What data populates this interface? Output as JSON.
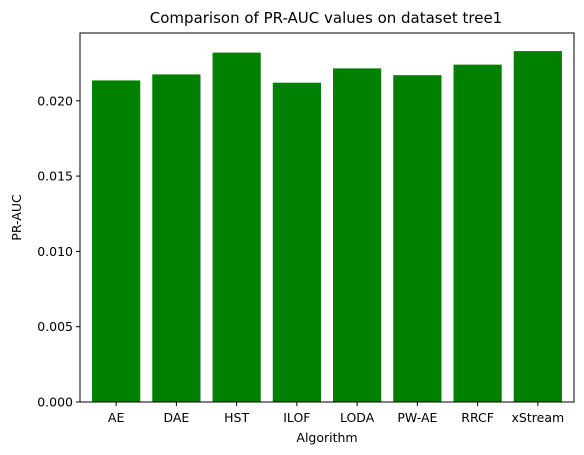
{
  "chart_data": {
    "type": "bar",
    "title": "Comparison of PR-AUC values on dataset tree1",
    "xlabel": "Algorithm",
    "ylabel": "PR-AUC",
    "categories": [
      "AE",
      "DAE",
      "HST",
      "ILOF",
      "LODA",
      "PW-AE",
      "RRCF",
      "xStream"
    ],
    "values": [
      0.02135,
      0.02175,
      0.0232,
      0.0212,
      0.02215,
      0.0217,
      0.0224,
      0.0233
    ],
    "ylim": [
      0,
      0.0245
    ],
    "yticks": [
      0.0,
      0.005,
      0.01,
      0.015,
      0.02
    ],
    "ytick_labels": [
      "0.000",
      "0.005",
      "0.010",
      "0.015",
      "0.020"
    ],
    "bar_color": "#008000",
    "grid": false,
    "legend": "none"
  }
}
